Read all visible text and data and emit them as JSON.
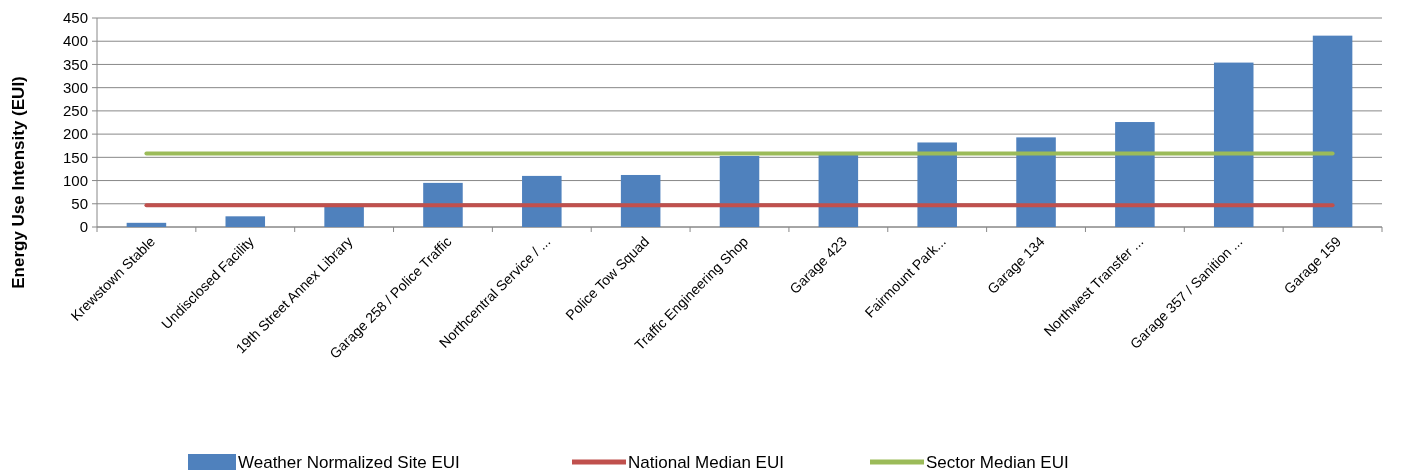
{
  "chart_data": {
    "type": "bar",
    "ylabel": "Energy Use Intensity (EUI)",
    "categories": [
      "Krewstown Stable",
      "Undisclosed Facility",
      "19th Street Annex Library",
      "Garage 258 / Police Traffic",
      "Northcentral Service / ...",
      "Police Tow Squad",
      "Traffic Engineering Shop",
      "Garage 423",
      "Fairmount Park...",
      "Garage 134",
      "Northwest Transfer ...",
      "Garage 357 / Sanition ...",
      "Garage 159"
    ],
    "series": [
      {
        "name": "Weather Normalized Site EUI",
        "color": "#4f81bd",
        "values": [
          9,
          23,
          46,
          95,
          110,
          112,
          153,
          161,
          182,
          193,
          226,
          354,
          412
        ]
      },
      {
        "name": "National Median EUI",
        "type": "line",
        "color": "#c0504d",
        "values": [
          47,
          47,
          47,
          47,
          47,
          47,
          47,
          47,
          47,
          47,
          47,
          47,
          47
        ]
      },
      {
        "name": "Sector Median EUI",
        "type": "line",
        "color": "#9bbb59",
        "values": [
          158,
          158,
          158,
          158,
          158,
          158,
          158,
          158,
          158,
          158,
          158,
          158,
          158
        ]
      }
    ],
    "ylim": [
      0,
      450
    ],
    "yticks": [
      0,
      50,
      100,
      150,
      200,
      250,
      300,
      350,
      400,
      450
    ],
    "grid": "y",
    "legend": "bottom",
    "marker": "none",
    "line_style": "solid"
  }
}
